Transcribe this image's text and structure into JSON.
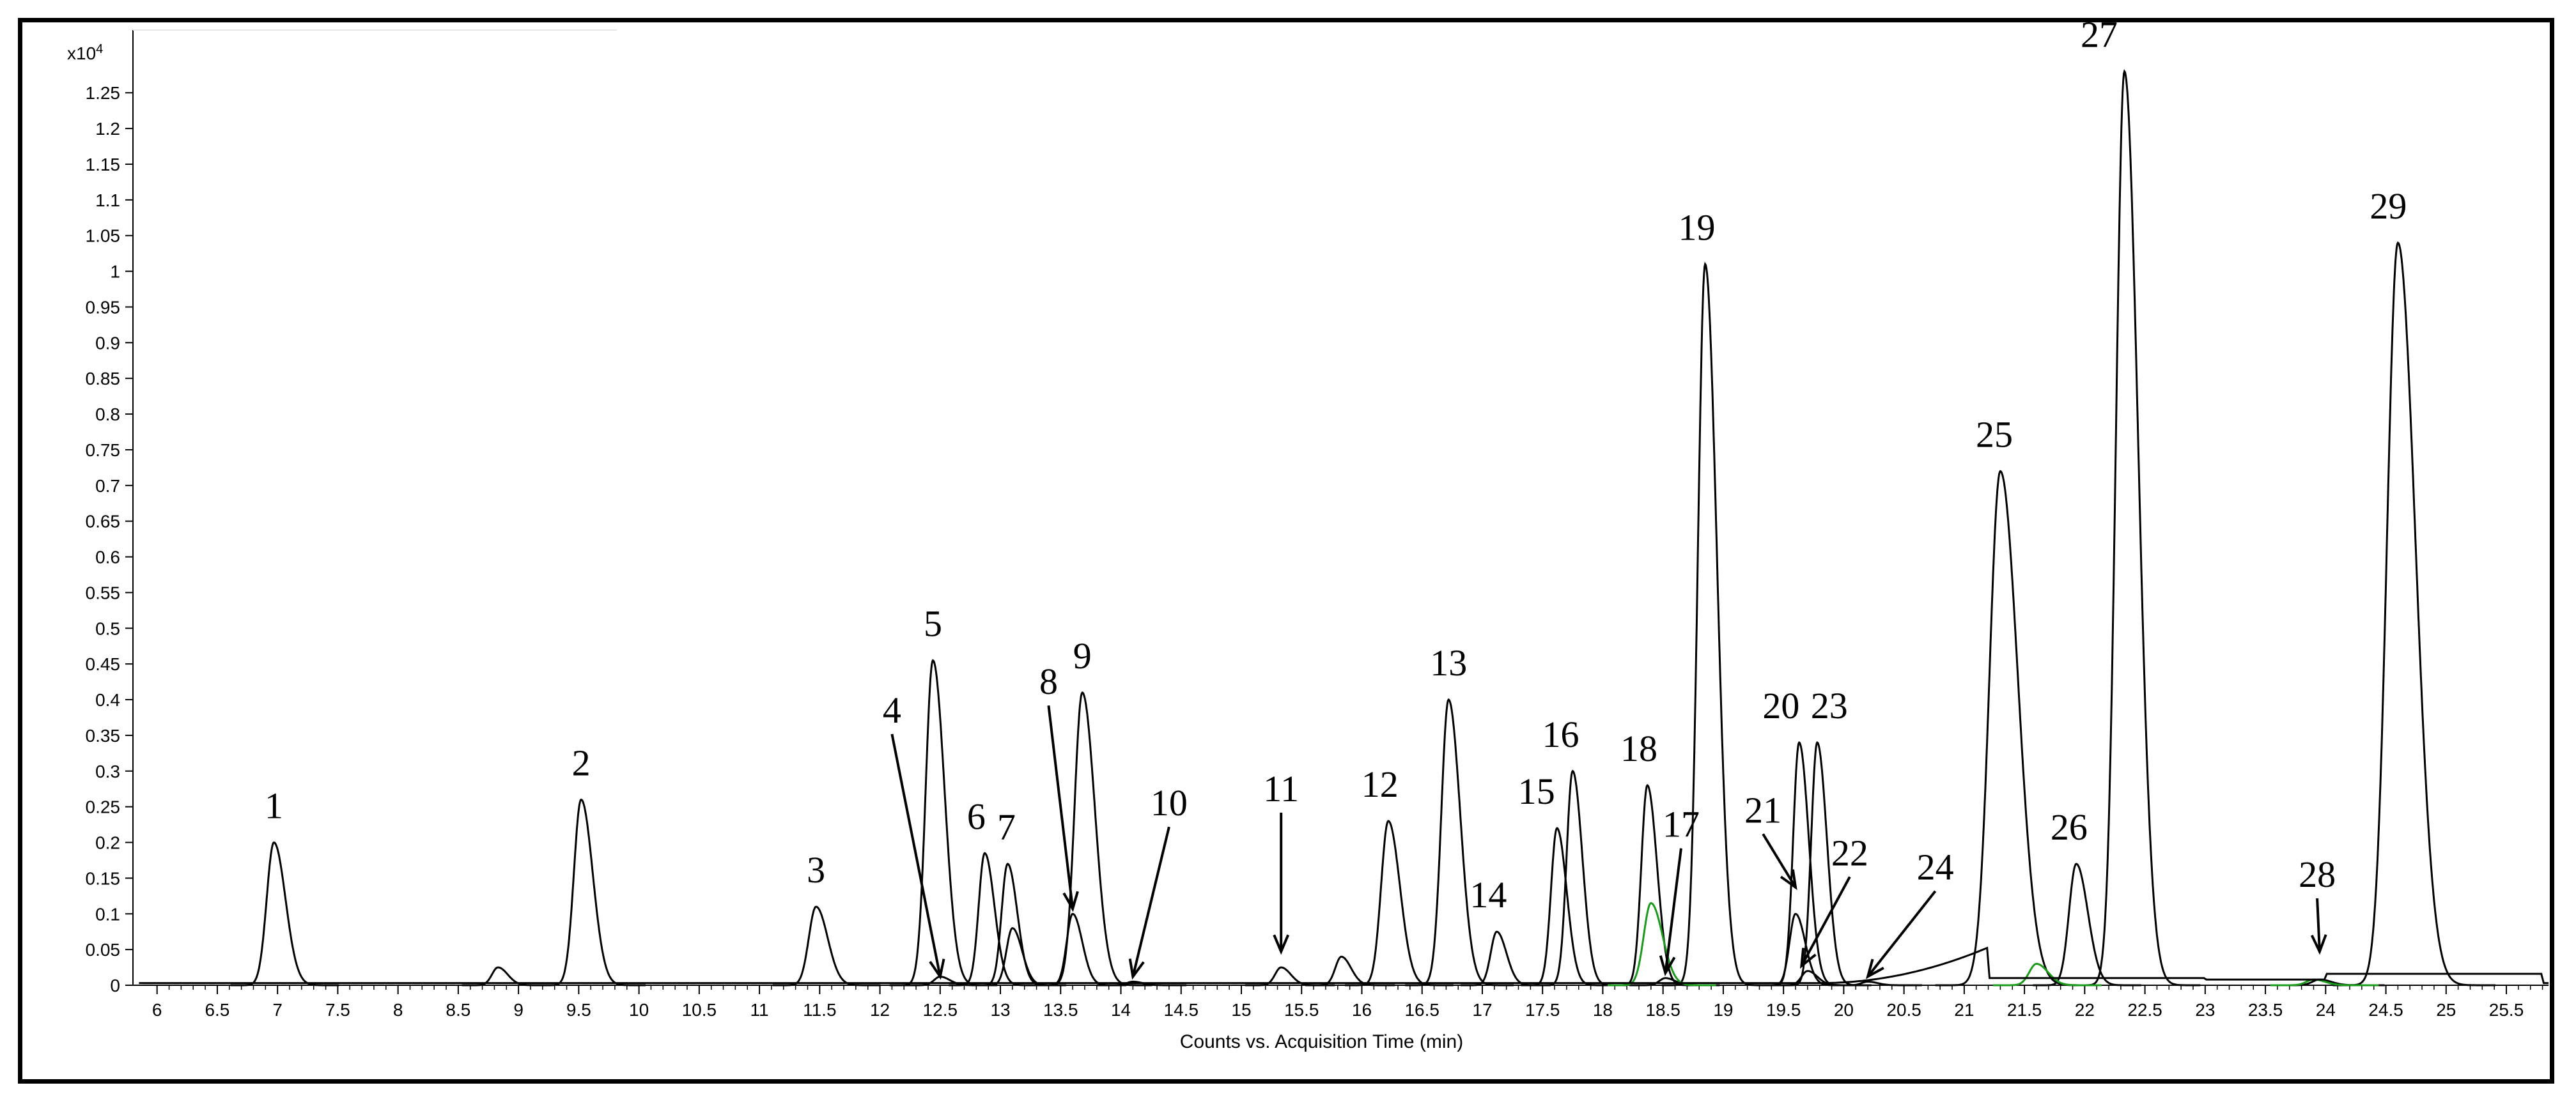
{
  "chart_data": {
    "type": "line",
    "xlabel": "Counts vs. Acquisition Time (min)",
    "y_scale_label": "x10",
    "y_scale_exponent": "4",
    "xlim": [
      5.8,
      25.85
    ],
    "ylim": [
      0,
      1.32
    ],
    "x_ticks": [
      "6",
      "6.5",
      "7",
      "7.5",
      "8",
      "8.5",
      "9",
      "9.5",
      "10",
      "10.5",
      "11",
      "11.5",
      "12",
      "12.5",
      "13",
      "13.5",
      "14",
      "14.5",
      "15",
      "15.5",
      "16",
      "16.5",
      "17",
      "17.5",
      "18",
      "18.5",
      "19",
      "19.5",
      "20",
      "20.5",
      "21",
      "21.5",
      "22",
      "22.5",
      "23",
      "23.5",
      "24",
      "24.5",
      "25",
      "25.5"
    ],
    "y_ticks": [
      "0",
      "0.05",
      "0.1",
      "0.15",
      "0.2",
      "0.25",
      "0.3",
      "0.35",
      "0.4",
      "0.45",
      "0.5",
      "0.55",
      "0.6",
      "0.65",
      "0.7",
      "0.75",
      "0.8",
      "0.85",
      "0.9",
      "0.95",
      "1",
      "1.05",
      "1.1",
      "1.15",
      "1.2",
      "1.25"
    ],
    "grid": false,
    "colors": {
      "main_trace": "#000000",
      "secondary_trace": "#1a9a1a",
      "frame": "#000000"
    },
    "series": [
      {
        "color": "#000000",
        "peaks": [
          {
            "label": "1",
            "rt": 6.97,
            "height": 0.2,
            "width": 0.06
          },
          {
            "label": "",
            "rt": 8.83,
            "height": 0.025,
            "width": 0.05
          },
          {
            "label": "2",
            "rt": 9.52,
            "height": 0.26,
            "width": 0.06
          },
          {
            "label": "3",
            "rt": 11.47,
            "height": 0.11,
            "width": 0.06
          },
          {
            "label": "4",
            "rt": 12.5,
            "height": 0.012,
            "width": 0.05
          },
          {
            "label": "5",
            "rt": 12.44,
            "height": 0.455,
            "width": 0.06
          },
          {
            "label": "6",
            "rt": 12.87,
            "height": 0.185,
            "width": 0.05
          },
          {
            "label": "7",
            "rt": 13.06,
            "height": 0.17,
            "width": 0.05
          },
          {
            "label": "",
            "rt": 13.1,
            "height": 0.08,
            "width": 0.05
          },
          {
            "label": "8",
            "rt": 13.6,
            "height": 0.1,
            "width": 0.05
          },
          {
            "label": "9",
            "rt": 13.68,
            "height": 0.41,
            "width": 0.065
          },
          {
            "label": "10",
            "rt": 14.1,
            "height": 0.005,
            "width": 0.05
          },
          {
            "label": "11",
            "rt": 15.33,
            "height": 0.025,
            "width": 0.05
          },
          {
            "label": "",
            "rt": 15.83,
            "height": 0.04,
            "width": 0.05
          },
          {
            "label": "12",
            "rt": 16.22,
            "height": 0.23,
            "width": 0.06
          },
          {
            "label": "13",
            "rt": 16.72,
            "height": 0.4,
            "width": 0.06
          },
          {
            "label": "14",
            "rt": 17.12,
            "height": 0.075,
            "width": 0.05
          },
          {
            "label": "15",
            "rt": 17.62,
            "height": 0.22,
            "width": 0.05
          },
          {
            "label": "16",
            "rt": 17.75,
            "height": 0.3,
            "width": 0.05
          },
          {
            "label": "18",
            "rt": 18.37,
            "height": 0.28,
            "width": 0.05
          },
          {
            "label": "17",
            "rt": 18.52,
            "height": 0.01,
            "width": 0.05
          },
          {
            "label": "19",
            "rt": 18.85,
            "height": 1.01,
            "width": 0.06
          },
          {
            "label": "20",
            "rt": 19.63,
            "height": 0.34,
            "width": 0.05
          },
          {
            "label": "21",
            "rt": 19.6,
            "height": 0.1,
            "width": 0.05
          },
          {
            "label": "22",
            "rt": 19.7,
            "height": 0.02,
            "width": 0.05
          },
          {
            "label": "23",
            "rt": 19.78,
            "height": 0.34,
            "width": 0.05
          },
          {
            "label": "24",
            "rt": 20.2,
            "height": 0.005,
            "width": 0.05
          },
          {
            "label": "25",
            "rt": 21.3,
            "height": 0.72,
            "width": 0.09
          },
          {
            "label": "26",
            "rt": 21.93,
            "height": 0.17,
            "width": 0.06
          },
          {
            "label": "27",
            "rt": 22.33,
            "height": 1.28,
            "width": 0.07
          },
          {
            "label": "28",
            "rt": 23.95,
            "height": 0.008,
            "width": 0.06
          },
          {
            "label": "29",
            "rt": 24.6,
            "height": 1.04,
            "width": 0.09
          }
        ]
      },
      {
        "color": "#1a9a1a",
        "peaks": [
          {
            "label": "",
            "rt": 18.4,
            "height": 0.115,
            "width": 0.06
          },
          {
            "label": "",
            "rt": 21.6,
            "height": 0.03,
            "width": 0.06
          },
          {
            "label": "",
            "rt": 23.9,
            "height": 0.008,
            "width": 0.06
          }
        ]
      }
    ],
    "peak_labels": [
      {
        "text": "1",
        "rt": 6.97,
        "height": 0.2
      },
      {
        "text": "2",
        "rt": 9.52,
        "height": 0.26
      },
      {
        "text": "3",
        "rt": 11.47,
        "height": 0.11
      },
      {
        "text": "4",
        "rt": 12.1,
        "height": 0.35,
        "arrow_to": [
          12.5,
          0.005
        ]
      },
      {
        "text": "5",
        "rt": 12.44,
        "height": 0.455
      },
      {
        "text": "6",
        "rt": 12.8,
        "height": 0.185
      },
      {
        "text": "7",
        "rt": 13.05,
        "height": 0.17
      },
      {
        "text": "8",
        "rt": 13.4,
        "height": 0.39,
        "arrow_to": [
          13.6,
          0.1
        ]
      },
      {
        "text": "9",
        "rt": 13.68,
        "height": 0.41
      },
      {
        "text": "10",
        "rt": 14.4,
        "height": 0.22,
        "arrow_to": [
          14.1,
          0.005
        ]
      },
      {
        "text": "11",
        "rt": 15.33,
        "height": 0.24,
        "arrow_to": [
          15.33,
          0.04
        ]
      },
      {
        "text": "12",
        "rt": 16.15,
        "height": 0.23
      },
      {
        "text": "13",
        "rt": 16.72,
        "height": 0.4
      },
      {
        "text": "14",
        "rt": 17.05,
        "height": 0.075
      },
      {
        "text": "15",
        "rt": 17.45,
        "height": 0.22
      },
      {
        "text": "16",
        "rt": 17.65,
        "height": 0.3
      },
      {
        "text": "17",
        "rt": 18.65,
        "height": 0.19,
        "arrow_to": [
          18.52,
          0.01
        ]
      },
      {
        "text": "18",
        "rt": 18.3,
        "height": 0.28
      },
      {
        "text": "19",
        "rt": 18.78,
        "height": 1.01
      },
      {
        "text": "20",
        "rt": 19.48,
        "height": 0.34
      },
      {
        "text": "21",
        "rt": 19.33,
        "height": 0.21,
        "arrow_to": [
          19.6,
          0.13
        ]
      },
      {
        "text": "22",
        "rt": 20.05,
        "height": 0.15,
        "arrow_to": [
          19.65,
          0.02
        ]
      },
      {
        "text": "23",
        "rt": 19.88,
        "height": 0.34
      },
      {
        "text": "24",
        "rt": 20.76,
        "height": 0.13,
        "arrow_to": [
          20.2,
          0.005
        ]
      },
      {
        "text": "25",
        "rt": 21.25,
        "height": 0.72
      },
      {
        "text": "26",
        "rt": 21.87,
        "height": 0.17
      },
      {
        "text": "27",
        "rt": 22.12,
        "height": 1.28
      },
      {
        "text": "28",
        "rt": 23.93,
        "height": 0.12,
        "arrow_to": [
          23.95,
          0.04
        ]
      },
      {
        "text": "29",
        "rt": 24.52,
        "height": 1.04
      }
    ]
  }
}
